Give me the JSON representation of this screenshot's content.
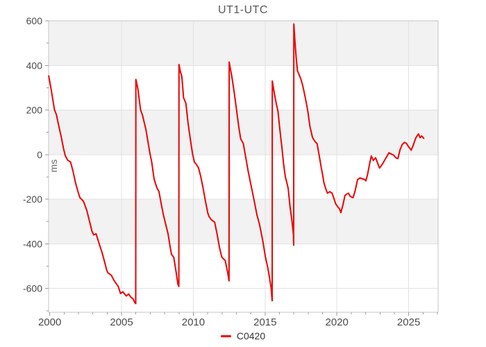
{
  "title": "UT1-UTC",
  "legend": {
    "series_label": "C0420"
  },
  "chart_data": {
    "type": "line",
    "title": "UT1-UTC",
    "xlabel": "",
    "ylabel": "ms",
    "legend_position": "bottom-center",
    "grid": true,
    "xlim": [
      1999.92,
      2027.05
    ],
    "ylim": [
      -707,
      600
    ],
    "x_ticks": [
      2000,
      2005,
      2010,
      2015,
      2020,
      2025
    ],
    "y_ticks": [
      600,
      400,
      200,
      0,
      -200,
      -400,
      -600
    ],
    "x_minor_step": 1,
    "y_minor_step": 100,
    "gray_bands": [
      [
        400,
        600
      ],
      [
        0,
        200
      ],
      [
        -400,
        -200
      ]
    ],
    "style": {
      "band_color": "#f2f2f2",
      "grid_color": "#e2e2e2",
      "axis_color": "#c4c4c4",
      "tick_color": "#999999",
      "label_color": "#4a4a4a",
      "title_color": "#575757",
      "series_color": "#ee0000"
    },
    "series": [
      {
        "name": "C0420",
        "color": "#ee0000",
        "points": [
          [
            1999.93,
            353
          ],
          [
            2000.1,
            292
          ],
          [
            2000.33,
            200
          ],
          [
            2000.46,
            180
          ],
          [
            2000.63,
            128
          ],
          [
            2000.8,
            80
          ],
          [
            2000.95,
            30
          ],
          [
            2001.08,
            -5
          ],
          [
            2001.25,
            -25
          ],
          [
            2001.45,
            -33
          ],
          [
            2001.62,
            -75
          ],
          [
            2001.78,
            -123
          ],
          [
            2001.97,
            -167
          ],
          [
            2002.1,
            -193
          ],
          [
            2002.35,
            -209
          ],
          [
            2002.58,
            -250
          ],
          [
            2002.82,
            -312
          ],
          [
            2002.94,
            -343
          ],
          [
            2003.07,
            -360
          ],
          [
            2003.23,
            -355
          ],
          [
            2003.47,
            -405
          ],
          [
            2003.65,
            -440
          ],
          [
            2003.81,
            -478
          ],
          [
            2003.97,
            -518
          ],
          [
            2004.05,
            -530
          ],
          [
            2004.29,
            -541
          ],
          [
            2004.45,
            -561
          ],
          [
            2004.61,
            -577
          ],
          [
            2004.77,
            -591
          ],
          [
            2004.93,
            -623
          ],
          [
            2005.09,
            -615
          ],
          [
            2005.33,
            -634
          ],
          [
            2005.49,
            -625
          ],
          [
            2005.65,
            -639
          ],
          [
            2005.8,
            -647
          ],
          [
            2005.93,
            -664
          ],
          [
            2005.99,
            -668
          ],
          [
            2006.0,
            337
          ],
          [
            2006.13,
            299
          ],
          [
            2006.33,
            200
          ],
          [
            2006.46,
            177
          ],
          [
            2006.7,
            112
          ],
          [
            2006.86,
            50
          ],
          [
            2006.98,
            5
          ],
          [
            2007.1,
            -33
          ],
          [
            2007.27,
            -110
          ],
          [
            2007.46,
            -148
          ],
          [
            2007.61,
            -166
          ],
          [
            2007.76,
            -219
          ],
          [
            2007.92,
            -271
          ],
          [
            2008.08,
            -313
          ],
          [
            2008.24,
            -354
          ],
          [
            2008.4,
            -420
          ],
          [
            2008.48,
            -447
          ],
          [
            2008.64,
            -461
          ],
          [
            2008.8,
            -525
          ],
          [
            2008.93,
            -582
          ],
          [
            2008.99,
            -591
          ],
          [
            2009.0,
            404
          ],
          [
            2009.1,
            372
          ],
          [
            2009.2,
            350
          ],
          [
            2009.32,
            255
          ],
          [
            2009.48,
            231
          ],
          [
            2009.63,
            143
          ],
          [
            2009.79,
            70
          ],
          [
            2009.95,
            2
          ],
          [
            2010.08,
            -34
          ],
          [
            2010.21,
            -44
          ],
          [
            2010.36,
            -59
          ],
          [
            2010.51,
            -96
          ],
          [
            2010.69,
            -153
          ],
          [
            2010.85,
            -210
          ],
          [
            2011.01,
            -262
          ],
          [
            2011.09,
            -277
          ],
          [
            2011.25,
            -292
          ],
          [
            2011.49,
            -303
          ],
          [
            2011.65,
            -355
          ],
          [
            2011.82,
            -416
          ],
          [
            2011.98,
            -459
          ],
          [
            2012.1,
            -468
          ],
          [
            2012.22,
            -474
          ],
          [
            2012.38,
            -525
          ],
          [
            2012.49,
            -566
          ],
          [
            2012.5,
            415
          ],
          [
            2012.68,
            350
          ],
          [
            2012.84,
            282
          ],
          [
            2013.0,
            205
          ],
          [
            2013.16,
            127
          ],
          [
            2013.3,
            70
          ],
          [
            2013.48,
            50
          ],
          [
            2013.64,
            -8
          ],
          [
            2013.81,
            -70
          ],
          [
            2013.97,
            -122
          ],
          [
            2014.1,
            -162
          ],
          [
            2014.25,
            -210
          ],
          [
            2014.44,
            -272
          ],
          [
            2014.61,
            -313
          ],
          [
            2014.85,
            -390
          ],
          [
            2015.02,
            -458
          ],
          [
            2015.18,
            -504
          ],
          [
            2015.3,
            -548
          ],
          [
            2015.42,
            -597
          ],
          [
            2015.49,
            -655
          ],
          [
            2015.5,
            330
          ],
          [
            2015.62,
            284
          ],
          [
            2015.77,
            232
          ],
          [
            2015.9,
            194
          ],
          [
            2016.0,
            130
          ],
          [
            2016.09,
            76
          ],
          [
            2016.17,
            34
          ],
          [
            2016.28,
            -38
          ],
          [
            2016.41,
            -100
          ],
          [
            2016.53,
            -130
          ],
          [
            2016.61,
            -152
          ],
          [
            2016.74,
            -235
          ],
          [
            2016.87,
            -297
          ],
          [
            2016.97,
            -358
          ],
          [
            2016.99,
            -406
          ],
          [
            2017.0,
            586
          ],
          [
            2017.08,
            510
          ],
          [
            2017.16,
            438
          ],
          [
            2017.25,
            377
          ],
          [
            2017.49,
            339
          ],
          [
            2017.6,
            315
          ],
          [
            2017.73,
            277
          ],
          [
            2017.86,
            235
          ],
          [
            2017.98,
            194
          ],
          [
            2018.12,
            128
          ],
          [
            2018.3,
            77
          ],
          [
            2018.46,
            60
          ],
          [
            2018.62,
            49
          ],
          [
            2018.78,
            -8
          ],
          [
            2018.9,
            -55
          ],
          [
            2019.02,
            -96
          ],
          [
            2019.1,
            -127
          ],
          [
            2019.22,
            -152
          ],
          [
            2019.34,
            -173
          ],
          [
            2019.5,
            -166
          ],
          [
            2019.66,
            -172
          ],
          [
            2019.79,
            -196
          ],
          [
            2019.91,
            -220
          ],
          [
            2020.05,
            -233
          ],
          [
            2020.18,
            -243
          ],
          [
            2020.28,
            -260
          ],
          [
            2020.42,
            -226
          ],
          [
            2020.56,
            -184
          ],
          [
            2020.7,
            -176
          ],
          [
            2020.8,
            -173
          ],
          [
            2020.93,
            -187
          ],
          [
            2021.05,
            -191
          ],
          [
            2021.13,
            -193
          ],
          [
            2021.28,
            -160
          ],
          [
            2021.44,
            -112
          ],
          [
            2021.6,
            -105
          ],
          [
            2021.76,
            -108
          ],
          [
            2021.93,
            -111
          ],
          [
            2022.02,
            -118
          ],
          [
            2022.15,
            -85
          ],
          [
            2022.28,
            -40
          ],
          [
            2022.4,
            -6
          ],
          [
            2022.54,
            -26
          ],
          [
            2022.7,
            -14
          ],
          [
            2022.84,
            -38
          ],
          [
            2022.97,
            -60
          ],
          [
            2023.12,
            -48
          ],
          [
            2023.3,
            -28
          ],
          [
            2023.46,
            -10
          ],
          [
            2023.62,
            8
          ],
          [
            2023.78,
            3
          ],
          [
            2023.95,
            -2
          ],
          [
            2024.1,
            -14
          ],
          [
            2024.25,
            -18
          ],
          [
            2024.4,
            22
          ],
          [
            2024.55,
            45
          ],
          [
            2024.72,
            55
          ],
          [
            2024.85,
            50
          ],
          [
            2025.0,
            35
          ],
          [
            2025.18,
            20
          ],
          [
            2025.32,
            42
          ],
          [
            2025.5,
            75
          ],
          [
            2025.68,
            93
          ],
          [
            2025.8,
            76
          ],
          [
            2025.9,
            84
          ],
          [
            2026.05,
            73
          ]
        ]
      }
    ]
  }
}
